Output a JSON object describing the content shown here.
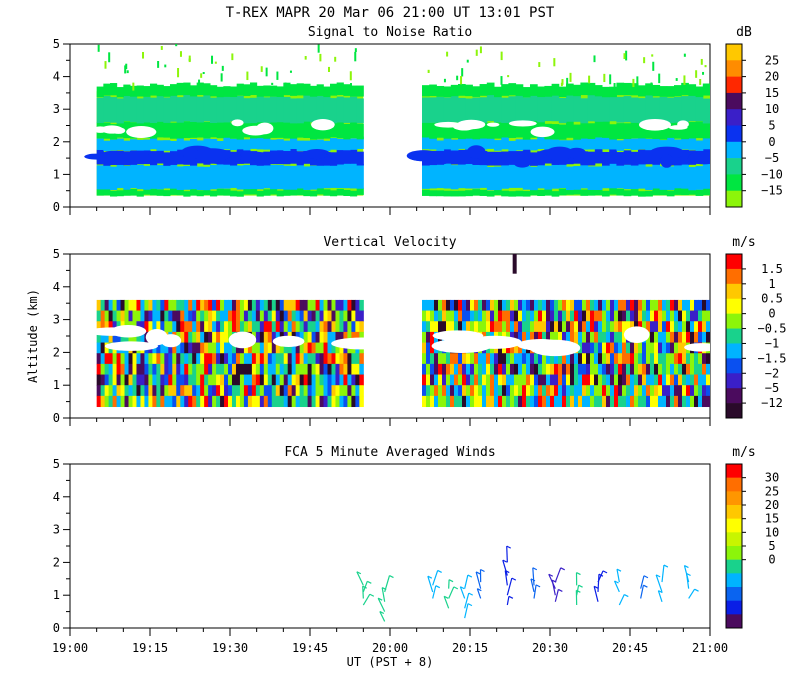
{
  "header": {
    "title": "T-REX  MAPR 20 Mar 06  21:00 UT  13:01  PST"
  },
  "chart_data": [
    {
      "type": "heatmap",
      "title": "Signal to Noise Ratio",
      "ylabel": "",
      "ylim": [
        0,
        5
      ],
      "yticks": [
        "0",
        "1",
        "2",
        "3",
        "4",
        "5"
      ],
      "xlim": [
        "19:00",
        "21:00"
      ],
      "colorbar_unit": "dB",
      "colorbar_labels": [
        "25",
        "20",
        "15",
        "10",
        "5",
        "0",
        "−5",
        "−10",
        "−15"
      ],
      "colorbar_colors": [
        "#ffc800",
        "#ff8c00",
        "#ff2800",
        "#4b0b5e",
        "#3a1fc8",
        "#0a32f0",
        "#00b4ff",
        "#19d28c",
        "#00e641",
        "#8cf50a"
      ],
      "data_gap": [
        "19:55",
        "20:06"
      ],
      "range_gate_altitude_km": [
        0.35,
        3.5
      ],
      "layers": [
        {
          "level": "−15",
          "alt_km": [
            0.35,
            0.55
          ]
        },
        {
          "level": "−5",
          "alt_km": [
            0.55,
            1.3
          ]
        },
        {
          "level": "0",
          "alt_km": [
            1.3,
            1.75
          ]
        },
        {
          "level": "−5",
          "alt_km": [
            1.75,
            2.1
          ]
        },
        {
          "level": "−15",
          "alt_km": [
            2.1,
            2.6
          ]
        },
        {
          "level": "−10",
          "alt_km": [
            2.6,
            3.4
          ]
        },
        {
          "level": "−15",
          "alt_km": [
            3.4,
            3.75
          ]
        }
      ]
    },
    {
      "type": "heatmap",
      "title": "Vertical Velocity",
      "ylabel": "Altitude (km)",
      "ylim": [
        0,
        5
      ],
      "yticks": [
        "0",
        "1",
        "2",
        "3",
        "4",
        "5"
      ],
      "xlim": [
        "19:00",
        "21:00"
      ],
      "colorbar_unit": "m/s",
      "colorbar_labels": [
        "1.5",
        "1",
        "0.5",
        "0",
        "−0.5",
        "−1",
        "−1.5",
        "−2",
        "−5",
        "−12"
      ],
      "colorbar_colors": [
        "#ff0000",
        "#ff6e00",
        "#ffc800",
        "#ffff00",
        "#8cf50a",
        "#19d28c",
        "#00b4ff",
        "#0a50f0",
        "#3a1fc8",
        "#4b0b5e",
        "#2a0a2a"
      ],
      "data_gap": [
        "19:55",
        "20:06"
      ],
      "range_gate_altitude_km": [
        0.35,
        3.6
      ]
    },
    {
      "type": "scatter",
      "title": "FCA 5 Minute Averaged Winds",
      "xlabel": "UT  (PST + 8)",
      "ylabel": "",
      "ylim": [
        0,
        5
      ],
      "yticks": [
        "0",
        "1",
        "2",
        "3",
        "4",
        "5"
      ],
      "xlim": [
        "19:00",
        "21:00"
      ],
      "xticks": [
        "19:00",
        "19:15",
        "19:30",
        "19:45",
        "20:00",
        "20:15",
        "20:30",
        "20:45",
        "21:00"
      ],
      "colorbar_unit": "m/s",
      "colorbar_labels": [
        "30",
        "25",
        "20",
        "15",
        "10",
        "5",
        "0"
      ],
      "colorbar_colors": [
        "#ff0000",
        "#ff6e00",
        "#ff9600",
        "#ffc800",
        "#ffff00",
        "#c8f500",
        "#8cf50a",
        "#19d28c",
        "#00b4ff",
        "#0a64f0",
        "#0a1ee6",
        "#4b0b5e"
      ],
      "barbs": [
        {
          "t": "19:55",
          "alt": [
            0.7,
            0.9,
            1.1,
            1.3
          ],
          "color": "#19d28c"
        },
        {
          "t": "19:59",
          "alt": [
            0.2,
            0.5,
            0.8,
            1.1
          ],
          "color": "#19d28c"
        },
        {
          "t": "20:08",
          "alt": [
            0.9,
            1.1,
            1.3
          ],
          "color": "#00b4ff"
        },
        {
          "t": "20:11",
          "alt": [
            0.6,
            0.9,
            1.2
          ],
          "color": "#19d28c"
        },
        {
          "t": "20:14",
          "alt": [
            0.3,
            0.6,
            0.9,
            1.2
          ],
          "color": "#00b4ff"
        },
        {
          "t": "20:17",
          "alt": [
            0.9,
            1.2,
            1.4
          ],
          "color": "#0a64f0"
        },
        {
          "t": "20:22",
          "alt": [
            0.7,
            1.0,
            1.3,
            1.6,
            2.0
          ],
          "color": "#0a1ee6"
        },
        {
          "t": "20:27",
          "alt": [
            0.9,
            1.1,
            1.3
          ],
          "color": "#0a64f0"
        },
        {
          "t": "20:31",
          "alt": [
            0.8,
            1.0,
            1.2,
            1.4
          ],
          "color": "#3a1fc8"
        },
        {
          "t": "20:35",
          "alt": [
            0.7,
            1.0,
            1.3
          ],
          "color": "#19d28c"
        },
        {
          "t": "20:39",
          "alt": [
            0.8,
            1.1,
            1.4
          ],
          "color": "#0a1ee6"
        },
        {
          "t": "20:43",
          "alt": [
            0.7,
            1.1,
            1.4
          ],
          "color": "#00b4ff"
        },
        {
          "t": "20:47",
          "alt": [
            0.9,
            1.2
          ],
          "color": "#0a64f0"
        },
        {
          "t": "20:51",
          "alt": [
            0.8,
            1.1,
            1.4
          ],
          "color": "#00b4ff"
        },
        {
          "t": "20:56",
          "alt": [
            0.9,
            1.2,
            1.4
          ],
          "color": "#00b4ff"
        }
      ]
    }
  ]
}
